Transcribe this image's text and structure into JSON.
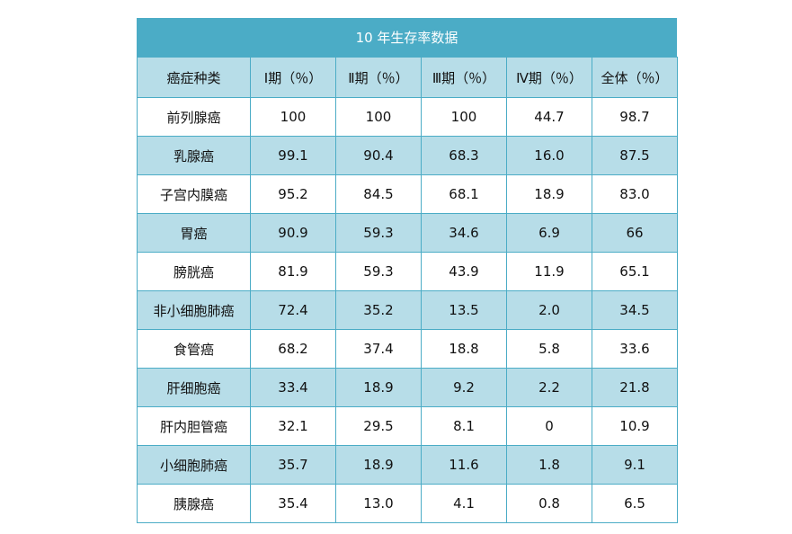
{
  "table": {
    "title": "10 年生存率数据",
    "headers": [
      "癌症种类",
      "Ⅰ期（％）",
      "Ⅱ期（％）",
      "Ⅲ期（％）",
      "Ⅳ期（％）",
      "全体（％）"
    ],
    "rows": [
      [
        "前列腺癌",
        "100",
        "100",
        "100",
        "44.7",
        "98.7"
      ],
      [
        "乳腺癌",
        "99.1",
        "90.4",
        "68.3",
        "16.0",
        "87.5"
      ],
      [
        "子宫内膜癌",
        "95.2",
        "84.5",
        "68.1",
        "18.9",
        "83.0"
      ],
      [
        "胃癌",
        "90.9",
        "59.3",
        "34.6",
        "6.9",
        "66"
      ],
      [
        "膀胱癌",
        "81.9",
        "59.3",
        "43.9",
        "11.9",
        "65.1"
      ],
      [
        "非小细胞肺癌",
        "72.4",
        "35.2",
        "13.5",
        "2.0",
        "34.5"
      ],
      [
        "食管癌",
        "68.2",
        "37.4",
        "18.8",
        "5.8",
        "33.6"
      ],
      [
        "肝细胞癌",
        "33.4",
        "18.9",
        "9.2",
        "2.2",
        "21.8"
      ],
      [
        "肝内胆管癌",
        "32.1",
        "29.5",
        "8.1",
        "0",
        "10.9"
      ],
      [
        "小细胞肺癌",
        "35.7",
        "18.9",
        "11.6",
        "1.8",
        "9.1"
      ],
      [
        "胰腺癌",
        "35.4",
        "13.0",
        "4.1",
        "0.8",
        "6.5"
      ]
    ]
  },
  "colors": {
    "title_bg": "#4bacc6",
    "band_bg": "#b7dde8",
    "border": "#4bacc6"
  }
}
